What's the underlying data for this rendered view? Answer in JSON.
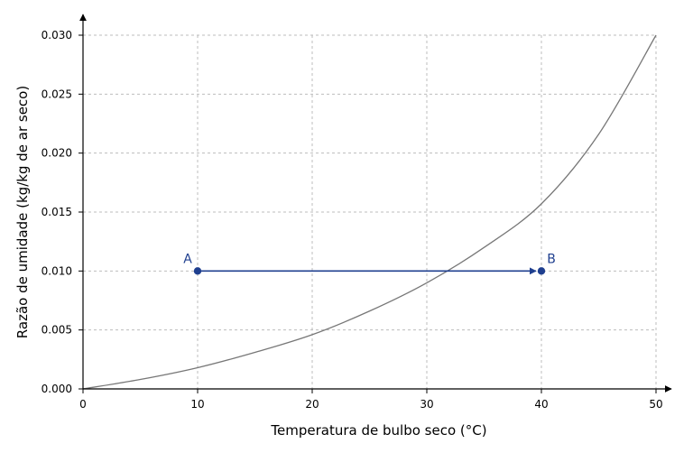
{
  "chart_data": {
    "type": "line",
    "xlabel": "Temperatura de bulbo seco (°C)",
    "ylabel": "Razão de umidade (kg/kg de ar seco)",
    "xlim": [
      0,
      50
    ],
    "ylim": [
      0,
      0.03
    ],
    "grid": true,
    "xticks": [
      "0",
      "10",
      "20",
      "30",
      "40",
      "50"
    ],
    "yticks": [
      "0.000",
      "0.005",
      "0.010",
      "0.015",
      "0.020",
      "0.025",
      "0.030"
    ],
    "saturation_curve": {
      "x": [
        0,
        5,
        10,
        15,
        20,
        25,
        30,
        35,
        40,
        45,
        50
      ],
      "y": [
        0.0,
        0.0008,
        0.0018,
        0.0031,
        0.0046,
        0.0066,
        0.009,
        0.012,
        0.0157,
        0.0216,
        0.03
      ]
    },
    "points": [
      {
        "label": "A",
        "x": 10,
        "y": 0.01
      },
      {
        "label": "B",
        "x": 40,
        "y": 0.01
      }
    ],
    "process_arrow": {
      "from": "A",
      "to": "B"
    },
    "colors": {
      "curve": "#777777",
      "process": "#1f3f8f",
      "grid": "#bdbdbd",
      "axis": "#000000"
    }
  }
}
